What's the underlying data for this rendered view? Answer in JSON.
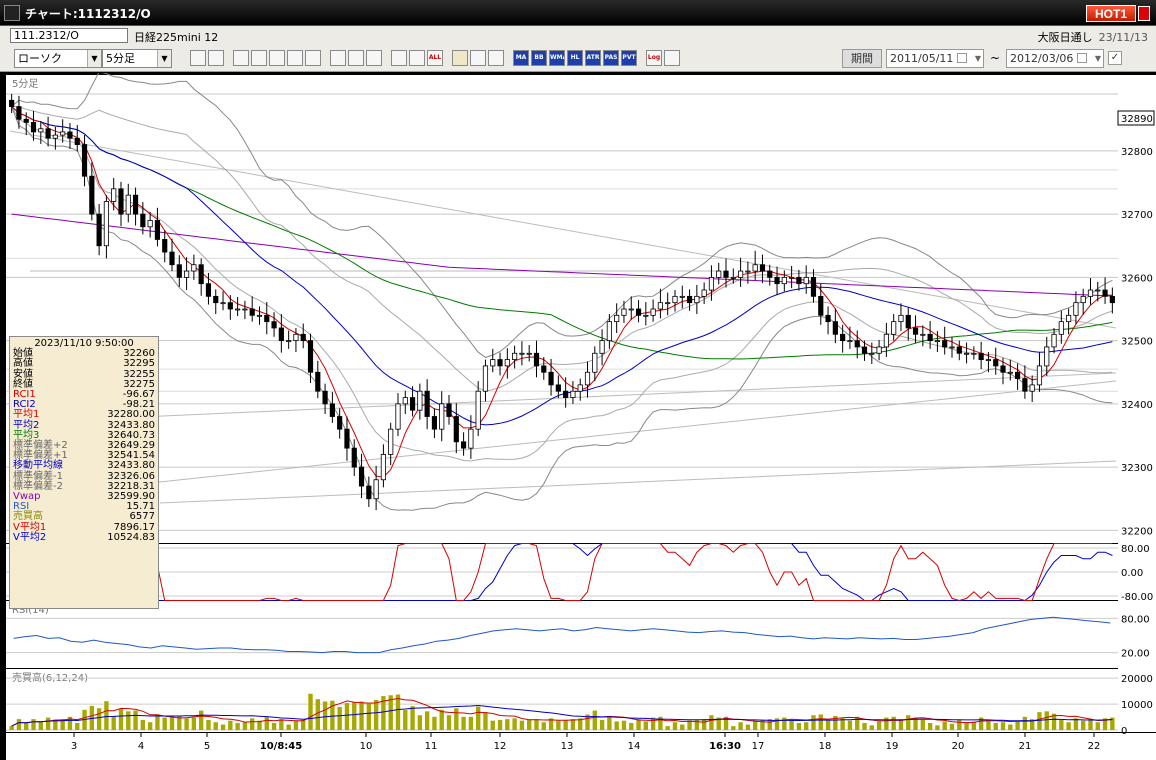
{
  "window": {
    "title": "チャート:1112312/O",
    "hot_label": "HOT"
  },
  "info": {
    "code": "111.2312/O",
    "name": "日経225mini 12",
    "session": "大阪日通し",
    "date": "23/11/13"
  },
  "toolbar": {
    "chart_type": "ローソク",
    "interval": "5分足",
    "period_label": "期間",
    "date_from": "2011/05/11",
    "date_to": "2012/03/06",
    "range_sep": "~",
    "buttons": [
      "zoom",
      "cursor",
      "sep",
      "down",
      "target",
      "bar",
      "swap",
      "info",
      "sep",
      "pen",
      "select",
      "redo",
      "sep",
      "candle1",
      "candle2",
      "ALL",
      "sep",
      "gear",
      "wrench",
      "palette",
      "sep",
      "MA",
      "BB",
      "WMA",
      "HL",
      "ATR",
      "PAS",
      "PVT",
      "sep",
      "Log",
      "flag"
    ]
  },
  "price_panel": {
    "label": "5分足",
    "y_labels": [
      "32890",
      "32800",
      "32700",
      "32600",
      "32500",
      "32400",
      "32300",
      "32200"
    ],
    "last_price": "32890"
  },
  "osc_panel": {
    "y_labels": [
      "80.00",
      "0.00",
      "-80.00"
    ]
  },
  "rsi_panel": {
    "label": "RSI(14)",
    "y_labels": [
      "80.00",
      "20.00"
    ]
  },
  "vol_panel": {
    "label": "売買高(6,12,24)",
    "y_labels": [
      "20000",
      "10000",
      "0"
    ]
  },
  "x_labels": [
    "3",
    "4",
    "5",
    "10/8:45",
    "10",
    "11",
    "12",
    "13",
    "14",
    "16:30",
    "17",
    "18",
    "19",
    "20",
    "21",
    "22"
  ],
  "info_box": {
    "datetime": "2023/11/10 9:50:00",
    "rows": [
      {
        "label": "始値",
        "value": "32260",
        "color": "#000000"
      },
      {
        "label": "高値",
        "value": "32295",
        "color": "#000000"
      },
      {
        "label": "安値",
        "value": "32255",
        "color": "#000000"
      },
      {
        "label": "終値",
        "value": "32275",
        "color": "#000000"
      },
      {
        "label": "RCI1",
        "value": "-96.67",
        "color": "#d40000"
      },
      {
        "label": "RCI2",
        "value": "-98.21",
        "color": "#0000c8"
      },
      {
        "label": "平均1",
        "value": "32280.00",
        "color": "#d40000"
      },
      {
        "label": "平均2",
        "value": "32433.80",
        "color": "#0000c8"
      },
      {
        "label": "平均3",
        "value": "32640.73",
        "color": "#007a00"
      },
      {
        "label": "標準偏差+2",
        "value": "32649.29",
        "color": "#666666"
      },
      {
        "label": "標準偏差+1",
        "value": "32541.54",
        "color": "#666666"
      },
      {
        "label": "移動平均線",
        "value": "32433.80",
        "color": "#0000c8"
      },
      {
        "label": "標準偏差-1",
        "value": "32326.06",
        "color": "#666666"
      },
      {
        "label": "標準偏差-2",
        "value": "32218.31",
        "color": "#666666"
      },
      {
        "label": "Vwap",
        "value": "32599.90",
        "color": "#8a00b0"
      },
      {
        "label": "RSI",
        "value": "15.71",
        "color": "#1f58c8"
      },
      {
        "label": "売買高",
        "value": "6577",
        "color": "#8a8a00"
      },
      {
        "label": "V平均1",
        "value": "7896.17",
        "color": "#d40000"
      },
      {
        "label": "V平均2",
        "value": "10524.83",
        "color": "#0000c8"
      }
    ]
  },
  "colors": {
    "avg1": "#d40000",
    "avg2": "#0000c8",
    "avg3": "#007a00",
    "bands": "#777777",
    "vwap": "#8a00b0",
    "rsi": "#1f58c8",
    "volume": "#a8a800",
    "trend": "#bbbbbb"
  },
  "chart_data": {
    "type": "candlestick",
    "ylim": [
      32180,
      32920
    ],
    "closes": [
      32870,
      32850,
      32845,
      32830,
      32835,
      32820,
      32825,
      32830,
      32820,
      32810,
      32760,
      32700,
      32650,
      32720,
      32740,
      32700,
      32730,
      32700,
      32680,
      32690,
      32660,
      32640,
      32620,
      32600,
      32610,
      32620,
      32590,
      32570,
      32560,
      32560,
      32550,
      32550,
      32550,
      32540,
      32540,
      32530,
      32520,
      32500,
      32500,
      32510,
      32500,
      32450,
      32420,
      32400,
      32380,
      32360,
      32330,
      32300,
      32270,
      32250,
      32280,
      32320,
      32360,
      32400,
      32410,
      32390,
      32420,
      32380,
      32360,
      32400,
      32380,
      32340,
      32330,
      32360,
      32420,
      32460,
      32470,
      32460,
      32470,
      32480,
      32480,
      32480,
      32460,
      32450,
      32430,
      32420,
      32410,
      32420,
      32430,
      32450,
      32480,
      32500,
      32530,
      32540,
      32550,
      32550,
      32540,
      32540,
      32550,
      32560,
      32560,
      32570,
      32570,
      32560,
      32570,
      32580,
      32600,
      32610,
      32600,
      32600,
      32610,
      32610,
      32620,
      32610,
      32600,
      32590,
      32600,
      32600,
      32590,
      32600,
      32570,
      32540,
      32530,
      32510,
      32500,
      32500,
      32490,
      32480,
      32480,
      32490,
      32510,
      32530,
      32540,
      32520,
      32510,
      32510,
      32500,
      32500,
      32490,
      32490,
      32480,
      32480,
      32480,
      32470,
      32470,
      32460,
      32450,
      32450,
      32440,
      32420,
      32430,
      32460,
      32490,
      32510,
      32530,
      32540,
      32560,
      32570,
      32580,
      32580,
      32570,
      32560
    ],
    "rsi_values": [
      45,
      48,
      50,
      45,
      46,
      40,
      38,
      42,
      38,
      36,
      34,
      30,
      28,
      32,
      30,
      28,
      26,
      27,
      28,
      28,
      26,
      25,
      25,
      24,
      22,
      22,
      21,
      20,
      22,
      22,
      20,
      20,
      20,
      25,
      28,
      32,
      35,
      40,
      42,
      45,
      50,
      54,
      58,
      60,
      62,
      60,
      58,
      60,
      62,
      58,
      60,
      64,
      62,
      60,
      58,
      60,
      62,
      60,
      58,
      56,
      55,
      57,
      58,
      56,
      55,
      52,
      50,
      48,
      49,
      46,
      44,
      46,
      45,
      44,
      46,
      45,
      44,
      45,
      43,
      43,
      45,
      47,
      49,
      52,
      55,
      62,
      66,
      70,
      74,
      78,
      80,
      82,
      80,
      78,
      76,
      74,
      72
    ]
  }
}
